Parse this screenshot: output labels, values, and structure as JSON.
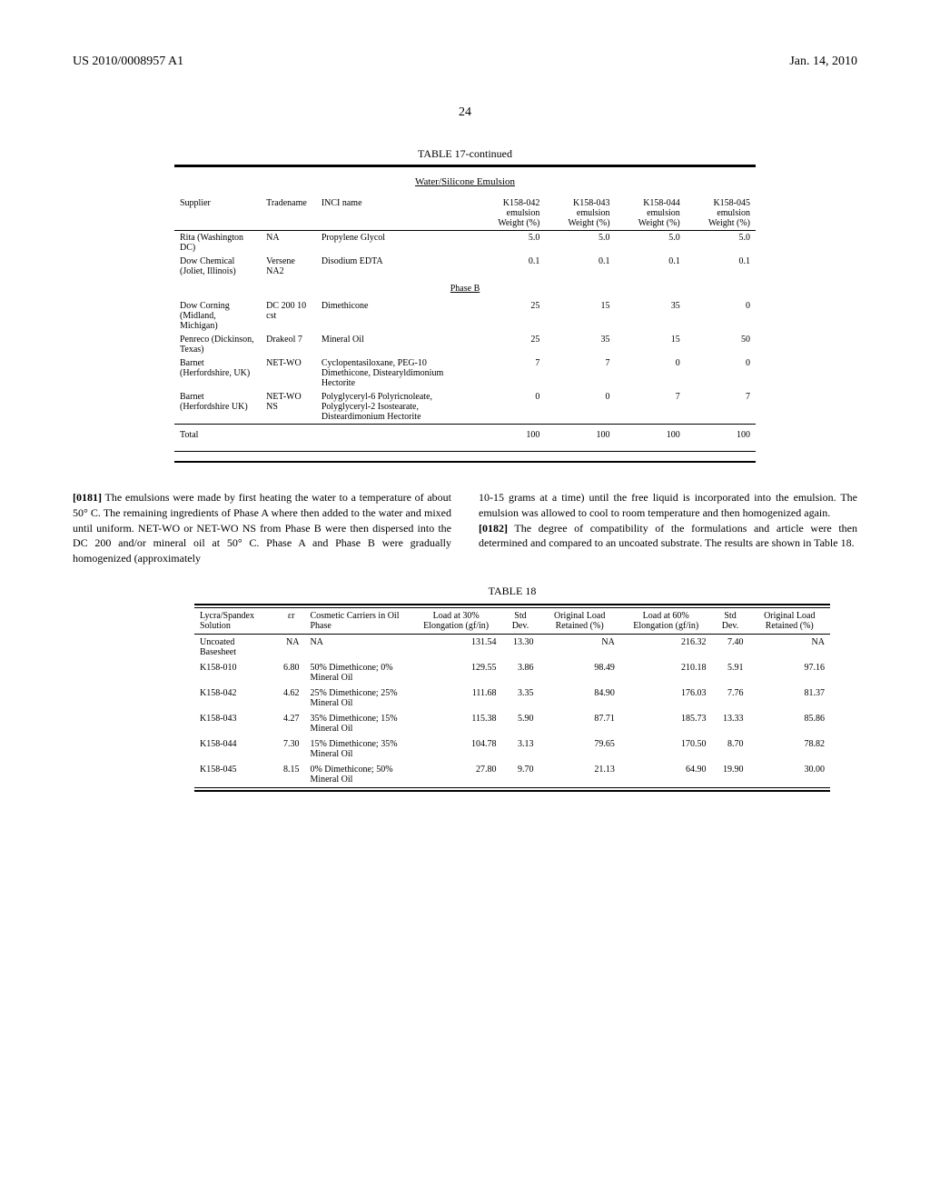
{
  "header": {
    "pub_number": "US 2010/0008957 A1",
    "date": "Jan. 14, 2010",
    "page": "24"
  },
  "table17": {
    "caption": "TABLE 17-continued",
    "subcaption": "Water/Silicone Emulsion",
    "columns": [
      "Supplier",
      "Tradename",
      "INCI name",
      "K158-042 emulsion Weight (%)",
      "K158-043 emulsion Weight (%)",
      "K158-044 emulsion Weight (%)",
      "K158-045 emulsion Weight (%)"
    ],
    "rows_a": [
      {
        "supplier": "Rita (Washington DC)",
        "tradename": "NA",
        "inci": "Propylene Glycol",
        "v": [
          "5.0",
          "5.0",
          "5.0",
          "5.0"
        ]
      },
      {
        "supplier": "Dow Chemical (Joliet, Illinois)",
        "tradename": "Versene NA2",
        "inci": "Disodium EDTA",
        "v": [
          "0.1",
          "0.1",
          "0.1",
          "0.1"
        ]
      }
    ],
    "section_b": "Phase B",
    "rows_b": [
      {
        "supplier": "Dow Corning (Midland, Michigan)",
        "tradename": "DC 200 10 cst",
        "inci": "Dimethicone",
        "v": [
          "25",
          "15",
          "35",
          "0"
        ]
      },
      {
        "supplier": "Penreco (Dickinson, Texas)",
        "tradename": "Drakeol 7",
        "inci": "Mineral Oil",
        "v": [
          "25",
          "35",
          "15",
          "50"
        ]
      },
      {
        "supplier": "Barnet (Herfordshire, UK)",
        "tradename": "NET-WO",
        "inci": "Cyclopentasiloxane, PEG-10 Dimethicone, Distearyldimonium Hectorite",
        "v": [
          "7",
          "7",
          "0",
          "0"
        ]
      },
      {
        "supplier": "Barnet (Herfordshire UK)",
        "tradename": "NET-WO NS",
        "inci": "Polyglyceryl-6 Polyricnoleate, Polyglyceryl-2 Isostearate, Disteardimonium Hectorite",
        "v": [
          "0",
          "0",
          "7",
          "7"
        ]
      }
    ],
    "total_label": "Total",
    "totals": [
      "100",
      "100",
      "100",
      "100"
    ]
  },
  "paragraphs": {
    "p0181_num": "[0181]",
    "p0181": "    The emulsions were made by first heating the water to a temperature of about 50° C. The remaining ingredients of Phase A where then added to the water and mixed until uniform. NET-WO or NET-WO NS from Phase B were then dispersed into the DC 200 and/or mineral oil at 50° C. Phase A and Phase B were gradually homogenized (approximately",
    "p_right1": "10-15 grams at a time) until the free liquid is incorporated into the emulsion. The emulsion was allowed to cool to room temperature and then homogenized again.",
    "p0182_num": "[0182]",
    "p0182": "    The degree of compatibility of the formulations and article were then determined and compared to an uncoated substrate. The results are shown in Table 18."
  },
  "table18": {
    "caption": "TABLE 18",
    "columns": [
      "Lycra/Spandex Solution",
      "εr",
      "Cosmetic Carriers in Oil Phase",
      "Load at 30% Elongation (gf/in)",
      "Std Dev.",
      "Original Load Retained (%)",
      "Load at 60% Elongation (gf/in)",
      "Std Dev.",
      "Original Load Retained (%)"
    ],
    "rows": [
      {
        "sol": "Uncoated Basesheet",
        "er": "NA",
        "carrier": "NA",
        "l30": "131.54",
        "sd30": "13.30",
        "r30": "NA",
        "l60": "216.32",
        "sd60": "7.40",
        "r60": "NA"
      },
      {
        "sol": "K158-010",
        "er": "6.80",
        "carrier": "50% Dimethicone; 0% Mineral Oil",
        "l30": "129.55",
        "sd30": "3.86",
        "r30": "98.49",
        "l60": "210.18",
        "sd60": "5.91",
        "r60": "97.16"
      },
      {
        "sol": "K158-042",
        "er": "4.62",
        "carrier": "25% Dimethicone; 25% Mineral Oil",
        "l30": "111.68",
        "sd30": "3.35",
        "r30": "84.90",
        "l60": "176.03",
        "sd60": "7.76",
        "r60": "81.37"
      },
      {
        "sol": "K158-043",
        "er": "4.27",
        "carrier": "35% Dimethicone; 15% Mineral Oil",
        "l30": "115.38",
        "sd30": "5.90",
        "r30": "87.71",
        "l60": "185.73",
        "sd60": "13.33",
        "r60": "85.86"
      },
      {
        "sol": "K158-044",
        "er": "7.30",
        "carrier": "15% Dimethicone; 35% Mineral Oil",
        "l30": "104.78",
        "sd30": "3.13",
        "r30": "79.65",
        "l60": "170.50",
        "sd60": "8.70",
        "r60": "78.82"
      },
      {
        "sol": "K158-045",
        "er": "8.15",
        "carrier": "0% Dimethicone; 50% Mineral Oil",
        "l30": "27.80",
        "sd30": "9.70",
        "r30": "21.13",
        "l60": "64.90",
        "sd60": "19.90",
        "r60": "30.00"
      }
    ]
  }
}
